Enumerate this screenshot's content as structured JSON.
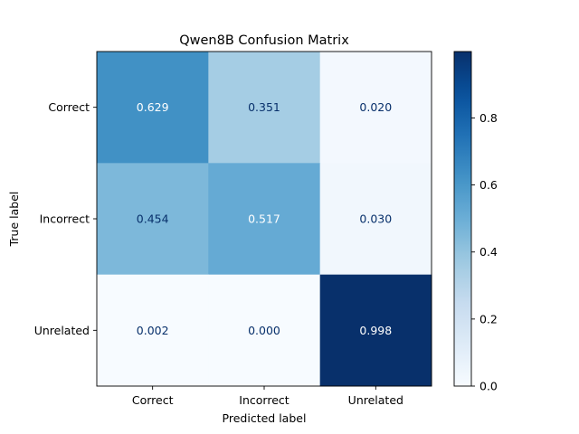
{
  "chart_data": {
    "type": "heatmap",
    "title": "Qwen8B Confusion Matrix",
    "xlabel": "Predicted label",
    "ylabel": "True label",
    "x_categories": [
      "Correct",
      "Incorrect",
      "Unrelated"
    ],
    "y_categories": [
      "Correct",
      "Incorrect",
      "Unrelated"
    ],
    "values": [
      [
        0.629,
        0.351,
        0.02
      ],
      [
        0.454,
        0.517,
        0.03
      ],
      [
        0.002,
        0.0,
        0.998
      ]
    ],
    "value_labels": [
      [
        "0.629",
        "0.351",
        "0.020"
      ],
      [
        "0.454",
        "0.517",
        "0.030"
      ],
      [
        "0.002",
        "0.000",
        "0.998"
      ]
    ],
    "colormap": "Blues",
    "colorbar": {
      "range": [
        0.0,
        0.998
      ],
      "ticks": [
        0.0,
        0.2,
        0.4,
        0.6,
        0.8
      ],
      "tick_labels": [
        "0.0",
        "0.2",
        "0.4",
        "0.6",
        "0.8"
      ]
    },
    "colors": {
      "low": "#f7fbff",
      "high": "#08306b",
      "light_text": "#ffffff",
      "dark_text": "#08306b"
    },
    "grid": false
  }
}
